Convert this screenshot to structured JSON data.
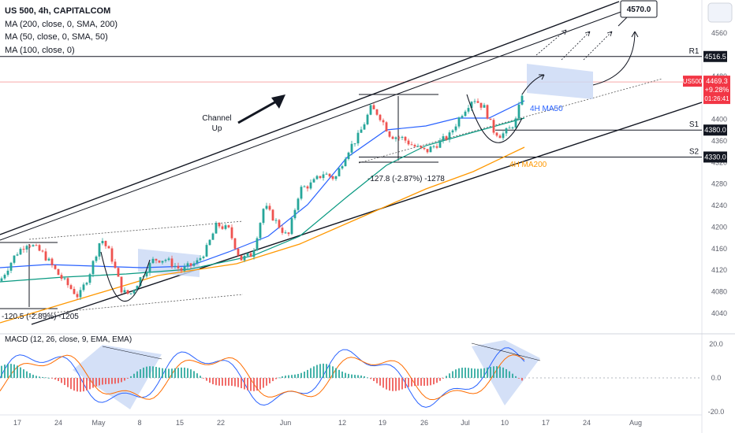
{
  "header": {
    "symbol_line": "US 500, 4h, CAPITALCOM",
    "indicators": [
      "MA (200, close, 0, SMA, 200)",
      "MA (50, close, 0, SMA, 50)",
      "MA (100, close, 0)"
    ]
  },
  "chart_data": {
    "type": "candlestick",
    "symbol": "US500",
    "timeframe": "4h",
    "y_axis_ticks": [
      4040,
      4080,
      4120,
      4160,
      4200,
      4240,
      4280,
      4320,
      4360,
      4400,
      4440,
      4480,
      4560
    ],
    "ylim": [
      4020,
      4600
    ],
    "x_axis_labels": [
      "17",
      "24",
      "May",
      "8",
      "15",
      "22",
      "Jun",
      "12",
      "19",
      "26",
      "Jul",
      "10",
      "17",
      "24",
      "Aug"
    ],
    "price_path": [
      [
        0,
        4100
      ],
      [
        20,
        4150
      ],
      [
        35,
        4172
      ],
      [
        55,
        4150
      ],
      [
        75,
        4110
      ],
      [
        100,
        4070
      ],
      [
        115,
        4120
      ],
      [
        128,
        4180
      ],
      [
        140,
        4150
      ],
      [
        155,
        4080
      ],
      [
        165,
        4075
      ],
      [
        180,
        4110
      ],
      [
        195,
        4140
      ],
      [
        210,
        4140
      ],
      [
        230,
        4120
      ],
      [
        250,
        4135
      ],
      [
        262,
        4160
      ],
      [
        275,
        4205
      ],
      [
        290,
        4195
      ],
      [
        305,
        4140
      ],
      [
        320,
        4150
      ],
      [
        335,
        4240
      ],
      [
        350,
        4210
      ],
      [
        365,
        4180
      ],
      [
        380,
        4270
      ],
      [
        395,
        4280
      ],
      [
        410,
        4300
      ],
      [
        425,
        4290
      ],
      [
        440,
        4340
      ],
      [
        455,
        4370
      ],
      [
        470,
        4420
      ],
      [
        480,
        4410
      ],
      [
        495,
        4370
      ],
      [
        510,
        4365
      ],
      [
        525,
        4350
      ],
      [
        540,
        4340
      ],
      [
        555,
        4355
      ],
      [
        570,
        4370
      ],
      [
        585,
        4410
      ],
      [
        600,
        4440
      ],
      [
        615,
        4420
      ],
      [
        625,
        4380
      ],
      [
        635,
        4370
      ],
      [
        645,
        4380
      ],
      [
        655,
        4400
      ],
      [
        665,
        4469
      ]
    ],
    "price_tags": [
      {
        "label": "4516.5",
        "value": 4516.5
      },
      {
        "label": "4380.0",
        "value": 4380.0
      },
      {
        "label": "4330.0",
        "value": 4330.0
      }
    ],
    "current_price": {
      "symbol": "US500",
      "price": "4469.3",
      "change": "+9.28%",
      "countdown": "01:26:41",
      "value": 4469.3
    },
    "levels": [
      {
        "name": "R1",
        "value": 4516.5
      },
      {
        "name": "S1",
        "value": 4380.0
      },
      {
        "name": "S2",
        "value": 4330.0
      }
    ],
    "target_label": "4570.0",
    "annotations": {
      "channel_label": [
        "Channel",
        "Up"
      ],
      "ma50_label": "4H MA50",
      "ma200_label": "4H MA200",
      "drop1_label": "-120.5 (-2.89%) -1205",
      "drop2_label": "-127.8 (-2.87%) -1278"
    },
    "macd": {
      "title": "MACD (12, 26, close, 9, EMA, EMA)",
      "y_ticks": [
        "20.0",
        "0.0",
        "-20.0"
      ],
      "ylim": [
        -22,
        24
      ]
    },
    "grid": false,
    "legend_position": "top-left"
  },
  "colors": {
    "up": "#26a69a",
    "down": "#ef5350",
    "ma50": "#2962ff",
    "ma100": "#089981",
    "ma200": "#ff9800",
    "channel": "#131722",
    "highlight": "#c9d8f5"
  }
}
